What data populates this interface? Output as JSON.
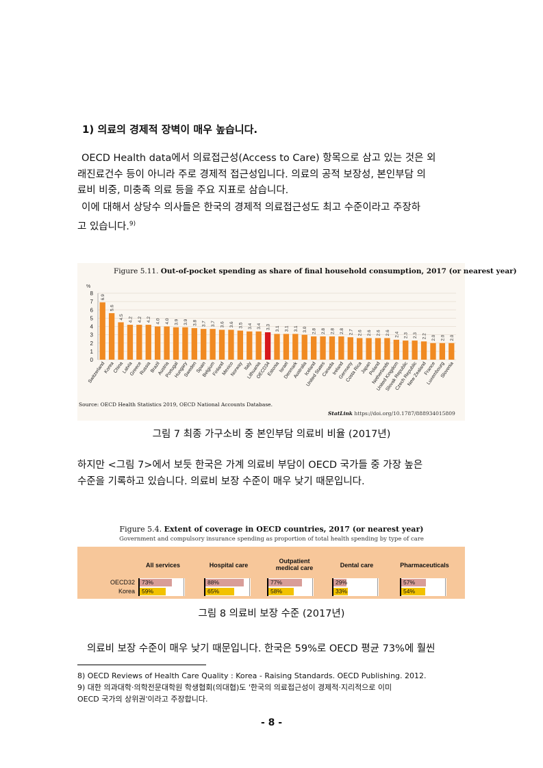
{
  "heading": "1) 의료의 경제적 장벽이 매우 높습니다.",
  "para1": [
    "OECD Health data에서 의료접근성(Access to Care) 항목으로 삼고 있는 것은 외",
    "래진료건수 등이 아니라 주로 경제적 접근성입니다. 의료의 공적 보장성, 본인부담 의",
    "료비 비중, 미충족 의료 등을 주요 지표로 삼습니다."
  ],
  "para2": [
    "이에 대해서 상당수 의사들은 한국의 경제적 의료접근성도 최고 수준이라고 주장하",
    "고 있습니다."
  ],
  "para2_ref": "9)",
  "figure1": {
    "title_prefix": "Figure 5.11.",
    "title": "Out-of-pocket spending as share of final household consumption, 2017 (or nearest year)",
    "source": "Source: OECD Health Statistics 2019, OECD National Accounts Database.",
    "statlink_label": "StatLink",
    "statlink_url": "https://doi.org/10.1787/888934015809",
    "caption": "그림 7 최종 가구소비 중 본인부담 의료비 비율 (2017년)"
  },
  "chart_data": {
    "type": "bar",
    "title": "Out-of-pocket spending as share of final household consumption, 2017 (or nearest year)",
    "ylabel": "%",
    "ylim": [
      0,
      8
    ],
    "yticks": [
      0,
      1,
      2,
      3,
      4,
      5,
      6,
      7,
      8
    ],
    "grid": true,
    "categories": [
      "Switzerland",
      "Korea",
      "China",
      "Latvia",
      "Greece",
      "Russia",
      "Brazil",
      "Austria",
      "Portugal",
      "Hungary",
      "Sweden",
      "Spain",
      "Belgium",
      "Finland",
      "Mexico",
      "Norway",
      "Italy",
      "Lithuania",
      "OECD34",
      "Estonia",
      "Israel",
      "Denmark",
      "Australia",
      "Iceland",
      "United States",
      "Canada",
      "Ireland",
      "Germany",
      "Costa Rica",
      "Japan",
      "Poland",
      "Netherlands",
      "United Kingdom",
      "Slovak Republic",
      "Czech Republic",
      "New Zealand",
      "France",
      "Luxembourg",
      "Slovenia"
    ],
    "values": [
      6.9,
      5.6,
      4.5,
      4.2,
      4.2,
      4.2,
      4.0,
      4.0,
      3.9,
      3.9,
      3.8,
      3.7,
      3.7,
      3.6,
      3.6,
      3.5,
      3.4,
      3.4,
      3.3,
      3.1,
      3.1,
      3.1,
      3.0,
      2.8,
      2.8,
      2.8,
      2.8,
      2.7,
      2.6,
      2.6,
      2.6,
      2.6,
      2.4,
      2.3,
      2.3,
      2.2,
      2.0,
      2.0,
      2.0
    ],
    "value_labels": [
      "6.9",
      "5.6",
      "4.5",
      "4.2",
      "4.2",
      "4.2",
      "4.0",
      "4.0",
      "3.9",
      "3.9",
      "3.8",
      "3.7",
      "3.7",
      "3.6",
      "3.6",
      "3.5",
      "3.4",
      "3.4",
      "3.3",
      "3.1",
      "3.1",
      "3.1",
      "3.0",
      "2.8",
      "2.8",
      "2.8",
      "2.8",
      "2.7",
      "2.6",
      "2.6",
      "2.6",
      "2.6",
      "2.4",
      "2.3",
      "2.3",
      "2.2",
      "2.0",
      "2.0",
      "2.0"
    ],
    "highlight": "OECD34",
    "colors": {
      "bar": "#f08a22",
      "highlight": "#d6171c",
      "grid": "#e6dcd0",
      "background": "#faf6f0"
    }
  },
  "para3": [
    "하지만 <그림 7>에서 보듯 한국은 가계 의료비 부담이 OECD 국가들 중 가장 높은",
    "수준을 기록하고 있습니다. 의료비 보장 수준이 매우 낮기 때문입니다."
  ],
  "figure2": {
    "title_prefix": "Figure 5.4.",
    "title": "Extent of coverage in OECD countries, 2017 (or nearest year)",
    "subtitle": "Government and compulsory insurance spending as proportion of total health spending by type of care",
    "row_labels": [
      "OECD32",
      "Korea"
    ],
    "columns": [
      {
        "label": "All services",
        "oecd": 73,
        "korea": 59,
        "oecd_label": "73%",
        "korea_label": "59%"
      },
      {
        "label": "Hospital care",
        "oecd": 88,
        "korea": 65,
        "oecd_label": "88%",
        "korea_label": "65%"
      },
      {
        "label": "Outpatient medical care",
        "oecd": 77,
        "korea": 58,
        "oecd_label": "77%",
        "korea_label": "58%"
      },
      {
        "label": "Dental care",
        "oecd": 29,
        "korea": 33,
        "oecd_label": "29%",
        "korea_label": "33%"
      },
      {
        "label": "Pharmaceuticals",
        "oecd": 57,
        "korea": 54,
        "oecd_label": "57%",
        "korea_label": "54%"
      }
    ],
    "caption": "그림 8 의료비 보장 수준 (2017년)"
  },
  "para4": [
    "의료비 보장 수준이 매우 낮기 때문입니다. 한국은 59%로 OECD 평균 73%에 훨씬"
  ],
  "footnotes": [
    "8) OECD Reviews of Health Care Quality : Korea - Raising Standards. OECD Publishing. 2012.",
    "9) 대한 의과대학·의학전문대학원 학생협회(의대협)도 '한국의 의료접근성이 경제적·지리적으로 이미",
    "OECD 국가의 상위권'이라고 주장합니다."
  ],
  "page_number": "- 8 -"
}
